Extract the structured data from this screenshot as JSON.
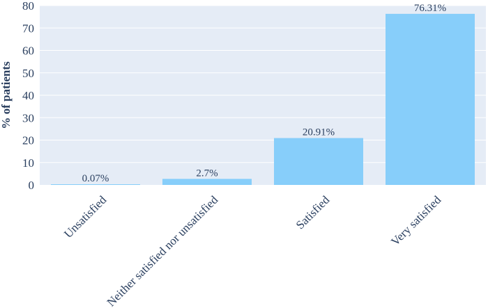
{
  "chart_data": {
    "type": "bar",
    "title": "",
    "xlabel": "",
    "ylabel": "% of patients",
    "ylim": [
      0,
      80
    ],
    "yticks": [
      0,
      10,
      20,
      30,
      40,
      50,
      60,
      70,
      80
    ],
    "grid": true,
    "categories": [
      "Unsatisfied",
      "Neither satisfied nor unsatisfied",
      "Satisfied",
      "Very satisfied"
    ],
    "values": [
      0.07,
      2.7,
      20.91,
      76.31
    ],
    "data_labels": [
      "0.07%",
      "2.7%",
      "20.91%",
      "76.31%"
    ],
    "colors": {
      "bar": "#87cefa",
      "plot_bg": "#e5ecf6",
      "grid": "#ffffff",
      "text": "#2a3f5f"
    }
  }
}
